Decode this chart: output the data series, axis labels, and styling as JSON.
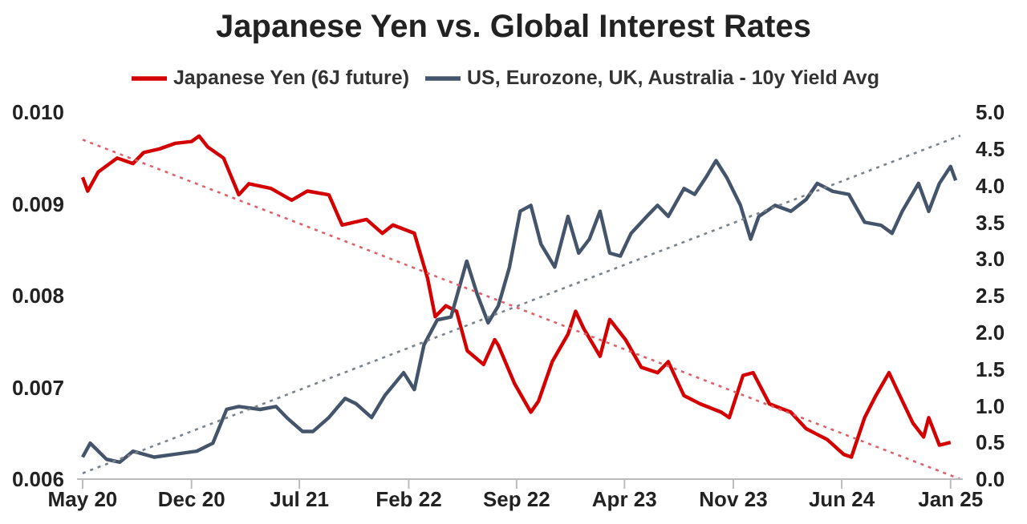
{
  "chart_data": {
    "type": "line",
    "title": "Japanese Yen vs. Global Interest Rates",
    "legend": "top",
    "marker": "none",
    "grid": false,
    "xlim": [
      "2020-04-20",
      "2025-01-25"
    ],
    "xticks": [
      {
        "value": "2020-05-01",
        "label": "May 20"
      },
      {
        "value": "2020-12-01",
        "label": "Dec 20"
      },
      {
        "value": "2021-07-01",
        "label": "Jul 21"
      },
      {
        "value": "2022-02-01",
        "label": "Feb 22"
      },
      {
        "value": "2022-09-01",
        "label": "Sep 22"
      },
      {
        "value": "2023-04-01",
        "label": "Apr 23"
      },
      {
        "value": "2023-11-01",
        "label": "Nov 23"
      },
      {
        "value": "2024-06-01",
        "label": "Jun 24"
      },
      {
        "value": "2025-01-01",
        "label": "Jan 25"
      }
    ],
    "ylim": [
      0.006,
      0.01
    ],
    "yticks": [
      0.006,
      0.007,
      0.008,
      0.009,
      {
        "value": 0.01,
        "label": "0.010"
      }
    ],
    "y2lim": [
      0,
      5
    ],
    "y2ticks": [
      {
        "value": 0,
        "label": "0.0"
      },
      0.5,
      {
        "value": 1,
        "label": "1.0"
      },
      1.5,
      {
        "value": 2,
        "label": "2.0"
      },
      2.5,
      {
        "value": 3,
        "label": "3.0"
      },
      3.5,
      {
        "value": 4,
        "label": "4.0"
      },
      4.5,
      {
        "value": 5,
        "label": "5.0"
      }
    ],
    "series": [
      {
        "name": "Japanese Yen (6J future)",
        "color": "#d40000",
        "line_style": "solid",
        "x": [
          "2020-05-01",
          "2020-05-11",
          "2020-06-01",
          "2020-07-08",
          "2020-08-08",
          "2020-08-29",
          "2020-09-29",
          "2020-10-30",
          "2020-12-01",
          "2020-12-16",
          "2021-01-02",
          "2021-02-02",
          "2021-03-04",
          "2021-03-24",
          "2021-05-06",
          "2021-06-16",
          "2021-07-17",
          "2021-08-28",
          "2021-09-23",
          "2021-11-10",
          "2021-12-11",
          "2022-01-01",
          "2022-02-12",
          "2022-03-10",
          "2022-03-25",
          "2022-04-15",
          "2022-05-06",
          "2022-05-27",
          "2022-06-28",
          "2022-07-20",
          "2022-07-27",
          "2022-08-28",
          "2022-09-29",
          "2022-10-14",
          "2022-11-10",
          "2022-12-11",
          "2022-12-26",
          "2023-01-11",
          "2023-02-12",
          "2023-03-03",
          "2023-04-03",
          "2023-05-04",
          "2023-06-05",
          "2023-06-26",
          "2023-07-27",
          "2023-08-28",
          "2023-10-08",
          "2023-10-24",
          "2023-11-20",
          "2023-12-10",
          "2024-01-11",
          "2024-02-22",
          "2024-03-23",
          "2024-05-04",
          "2024-06-05",
          "2024-06-20",
          "2024-07-16",
          "2024-08-07",
          "2024-09-02",
          "2024-09-18",
          "2024-10-19",
          "2024-11-09",
          "2024-11-19",
          "2024-12-10",
          "2025-01-01"
        ],
        "values": [
          0.00929,
          0.00914,
          0.00935,
          0.0095,
          0.00944,
          0.00956,
          0.0096,
          0.00966,
          0.00968,
          0.00974,
          0.00962,
          0.0095,
          0.0091,
          0.00922,
          0.00917,
          0.00904,
          0.00914,
          0.0091,
          0.00877,
          0.00883,
          0.00868,
          0.00877,
          0.00868,
          0.00819,
          0.00777,
          0.00789,
          0.00783,
          0.0074,
          0.00725,
          0.00752,
          0.00746,
          0.00704,
          0.00673,
          0.00685,
          0.00728,
          0.00758,
          0.00783,
          0.00764,
          0.00734,
          0.00774,
          0.00752,
          0.00722,
          0.00716,
          0.00728,
          0.00691,
          0.00682,
          0.00673,
          0.00667,
          0.00713,
          0.00716,
          0.00682,
          0.00673,
          0.00655,
          0.00643,
          0.00627,
          0.00624,
          0.00667,
          0.00691,
          0.00716,
          0.00697,
          0.00661,
          0.00646,
          0.00667,
          0.00637,
          0.0064
        ]
      },
      {
        "name": "US, Eurozone, UK, Australia - 10y Yield Avg",
        "color": "#44546a",
        "line_style": "solid",
        "axis": "y2",
        "x": [
          "2020-05-01",
          "2020-05-16",
          "2020-06-17",
          "2020-07-13",
          "2020-08-08",
          "2020-09-19",
          "2020-10-30",
          "2020-12-11",
          "2021-01-12",
          "2021-02-08",
          "2021-03-04",
          "2021-04-15",
          "2021-05-16",
          "2021-06-06",
          "2021-07-07",
          "2021-07-28",
          "2021-08-28",
          "2021-09-29",
          "2021-10-20",
          "2021-11-20",
          "2021-12-16",
          "2022-01-22",
          "2022-02-12",
          "2022-03-03",
          "2022-03-29",
          "2022-04-25",
          "2022-05-26",
          "2022-06-16",
          "2022-07-07",
          "2022-07-27",
          "2022-08-18",
          "2022-09-08",
          "2022-09-29",
          "2022-10-19",
          "2022-11-15",
          "2022-12-11",
          "2023-01-01",
          "2023-01-22",
          "2023-02-12",
          "2023-03-03",
          "2023-03-24",
          "2023-04-14",
          "2023-05-15",
          "2023-06-05",
          "2023-06-26",
          "2023-07-27",
          "2023-08-17",
          "2023-09-08",
          "2023-09-28",
          "2023-10-19",
          "2023-11-15",
          "2023-12-05",
          "2023-12-21",
          "2024-01-22",
          "2024-02-22",
          "2024-03-23",
          "2024-04-14",
          "2024-05-15",
          "2024-06-15",
          "2024-07-16",
          "2024-08-17",
          "2024-09-08",
          "2024-09-28",
          "2024-10-30",
          "2024-11-19",
          "2024-12-10",
          "2025-01-01",
          "2025-01-11"
        ],
        "values": [
          0.3,
          0.49,
          0.27,
          0.23,
          0.38,
          0.3,
          0.34,
          0.38,
          0.49,
          0.95,
          0.99,
          0.95,
          0.99,
          0.84,
          0.65,
          0.65,
          0.84,
          1.1,
          1.03,
          0.84,
          1.14,
          1.45,
          1.22,
          1.83,
          2.17,
          2.21,
          2.97,
          2.51,
          2.13,
          2.36,
          2.89,
          3.65,
          3.73,
          3.2,
          2.89,
          3.58,
          3.08,
          3.27,
          3.65,
          3.08,
          3.04,
          3.35,
          3.58,
          3.73,
          3.58,
          3.96,
          3.88,
          4.11,
          4.34,
          4.11,
          3.73,
          3.27,
          3.58,
          3.73,
          3.65,
          3.81,
          4.03,
          3.92,
          3.88,
          3.5,
          3.46,
          3.35,
          3.65,
          4.03,
          3.65,
          4.03,
          4.26,
          4.07
        ]
      },
      {
        "color": "#e0606a",
        "line_style": "dotted",
        "x": [
          "2020-05-01",
          "2025-01-20"
        ],
        "values": [
          0.0097,
          0.006
        ]
      },
      {
        "color": "#7a828c",
        "line_style": "dotted",
        "axis": "y2",
        "x": [
          "2020-05-01",
          "2025-01-20"
        ],
        "values": [
          0.08,
          4.68
        ]
      }
    ]
  }
}
